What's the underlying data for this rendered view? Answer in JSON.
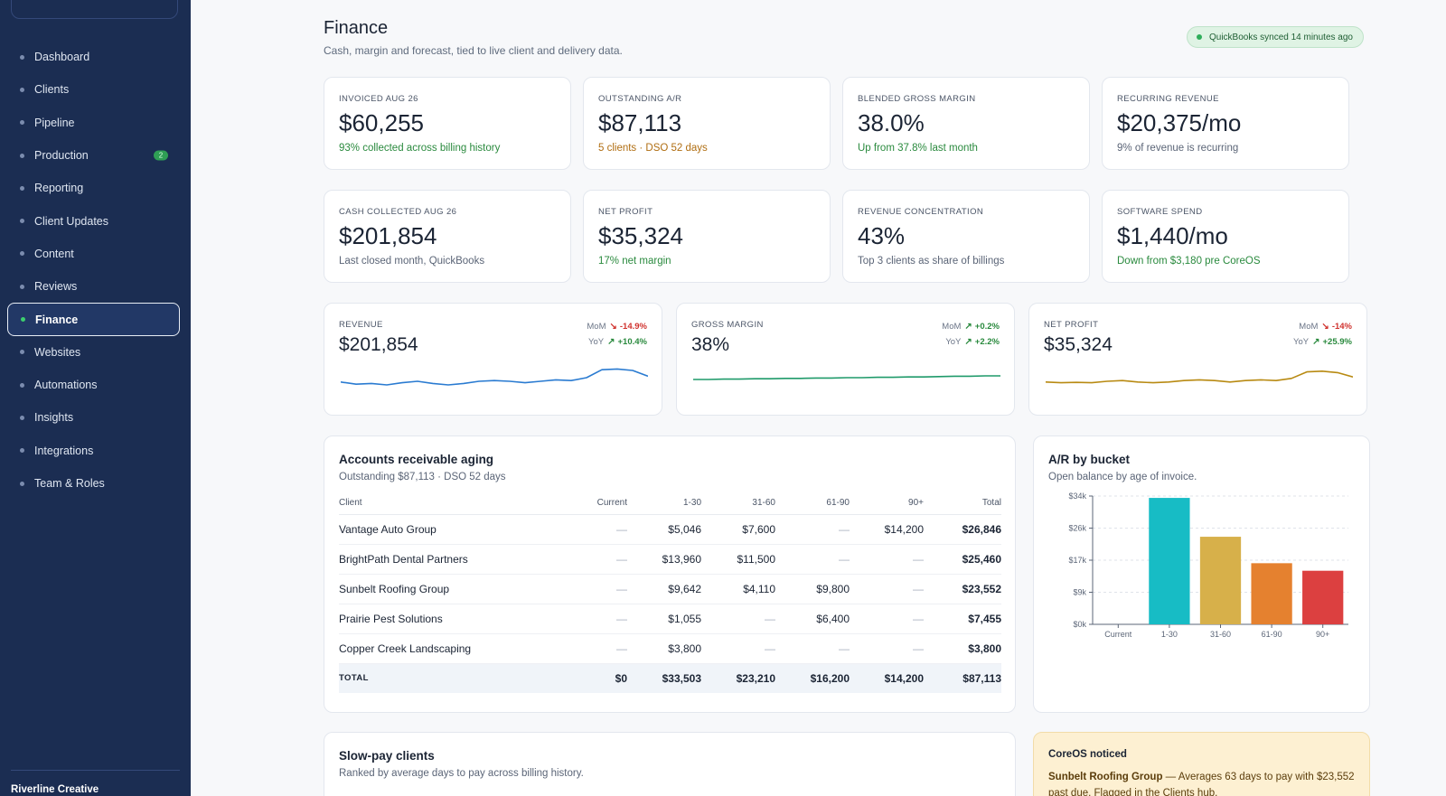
{
  "sidebar": {
    "items": [
      {
        "label": "Dashboard"
      },
      {
        "label": "Clients"
      },
      {
        "label": "Pipeline"
      },
      {
        "label": "Production",
        "badge": "2"
      },
      {
        "label": "Reporting"
      },
      {
        "label": "Client Updates"
      },
      {
        "label": "Content"
      },
      {
        "label": "Reviews"
      },
      {
        "label": "Finance",
        "active": true
      },
      {
        "label": "Websites"
      },
      {
        "label": "Automations"
      },
      {
        "label": "Insights"
      },
      {
        "label": "Integrations"
      },
      {
        "label": "Team & Roles"
      }
    ],
    "org_name": "Riverline Creative"
  },
  "header": {
    "title": "Finance",
    "subtitle": "Cash, margin and forecast, tied to live client and delivery data.",
    "sync_status": "QuickBooks synced 14 minutes ago"
  },
  "kpis": [
    {
      "label": "INVOICED AUG 26",
      "value": "$60,255",
      "note": "93% collected across billing history",
      "tone": "green"
    },
    {
      "label": "OUTSTANDING A/R",
      "value": "$87,113",
      "note": "5 clients · DSO 52 days",
      "tone": "amber"
    },
    {
      "label": "BLENDED GROSS MARGIN",
      "value": "38.0%",
      "note": "Up from 37.8% last month",
      "tone": "green"
    },
    {
      "label": "RECURRING REVENUE",
      "value": "$20,375/mo",
      "note": "9% of revenue is recurring",
      "tone": "gray"
    },
    {
      "label": "CASH COLLECTED AUG 26",
      "value": "$201,854",
      "note": "Last closed month, QuickBooks",
      "tone": "gray"
    },
    {
      "label": "NET PROFIT",
      "value": "$35,324",
      "note": "17% net margin",
      "tone": "green"
    },
    {
      "label": "REVENUE CONCENTRATION",
      "value": "43%",
      "note": "Top 3 clients as share of billings",
      "tone": "gray"
    },
    {
      "label": "SOFTWARE SPEND",
      "value": "$1,440/mo",
      "note": "Down from $3,180 pre CoreOS",
      "tone": "green"
    }
  ],
  "trends": [
    {
      "label": "REVENUE",
      "value": "$201,854",
      "mom_label": "MoM",
      "mom": "-14.9%",
      "yoy_label": "YoY",
      "yoy": "+10.4%",
      "color": "#2a7bd1"
    },
    {
      "label": "GROSS MARGIN",
      "value": "38%",
      "mom_label": "MoM",
      "mom": "+0.2%",
      "yoy_label": "YoY",
      "yoy": "+2.2%",
      "color": "#1f9a6a"
    },
    {
      "label": "NET PROFIT",
      "value": "$35,324",
      "mom_label": "MoM",
      "mom": "-14%",
      "yoy_label": "YoY",
      "yoy": "+25.9%",
      "color": "#b88a12"
    }
  ],
  "ar_aging": {
    "title": "Accounts receivable aging",
    "subtitle": "Outstanding $87,113 · DSO 52 days",
    "columns": [
      "Client",
      "Current",
      "1-30",
      "31-60",
      "61-90",
      "90+",
      "Total"
    ],
    "rows": [
      [
        "Vantage Auto Group",
        "—",
        "$5,046",
        "$7,600",
        "—",
        "$14,200",
        "$26,846"
      ],
      [
        "BrightPath Dental Partners",
        "—",
        "$13,960",
        "$11,500",
        "—",
        "—",
        "$25,460"
      ],
      [
        "Sunbelt Roofing Group",
        "—",
        "$9,642",
        "$4,110",
        "$9,800",
        "—",
        "$23,552"
      ],
      [
        "Prairie Pest Solutions",
        "—",
        "$1,055",
        "—",
        "$6,400",
        "—",
        "$7,455"
      ],
      [
        "Copper Creek Landscaping",
        "—",
        "$3,800",
        "—",
        "—",
        "—",
        "$3,800"
      ]
    ],
    "total": [
      "TOTAL",
      "$0",
      "$33,503",
      "$23,210",
      "$16,200",
      "$14,200",
      "$87,113"
    ]
  },
  "ar_bucket": {
    "title": "A/R by bucket",
    "subtitle": "Open balance by age of invoice."
  },
  "chart_data": {
    "type": "bar",
    "categories": [
      "Current",
      "1-30",
      "31-60",
      "61-90",
      "90+"
    ],
    "values": [
      0,
      33503,
      23210,
      16200,
      14200
    ],
    "colors": [
      "#9aa3b2",
      "#17bcc5",
      "#d7b04a",
      "#e5812f",
      "#dc4040"
    ],
    "ytick_labels": [
      "$0k",
      "$9k",
      "$17k",
      "$26k",
      "$34k"
    ],
    "ytick_values": [
      0,
      8500,
      17000,
      25500,
      34000
    ],
    "ylim": [
      0,
      34000
    ],
    "title": "",
    "xlabel": "",
    "ylabel": "",
    "grid": true
  },
  "slow_pay": {
    "title": "Slow-pay clients",
    "subtitle": "Ranked by average days to pay across billing history."
  },
  "notice": {
    "title": "CoreOS noticed",
    "client": "Sunbelt Roofing Group",
    "text": " — Averages 63 days to pay with $23,552 past due. Flagged in the Clients hub."
  }
}
